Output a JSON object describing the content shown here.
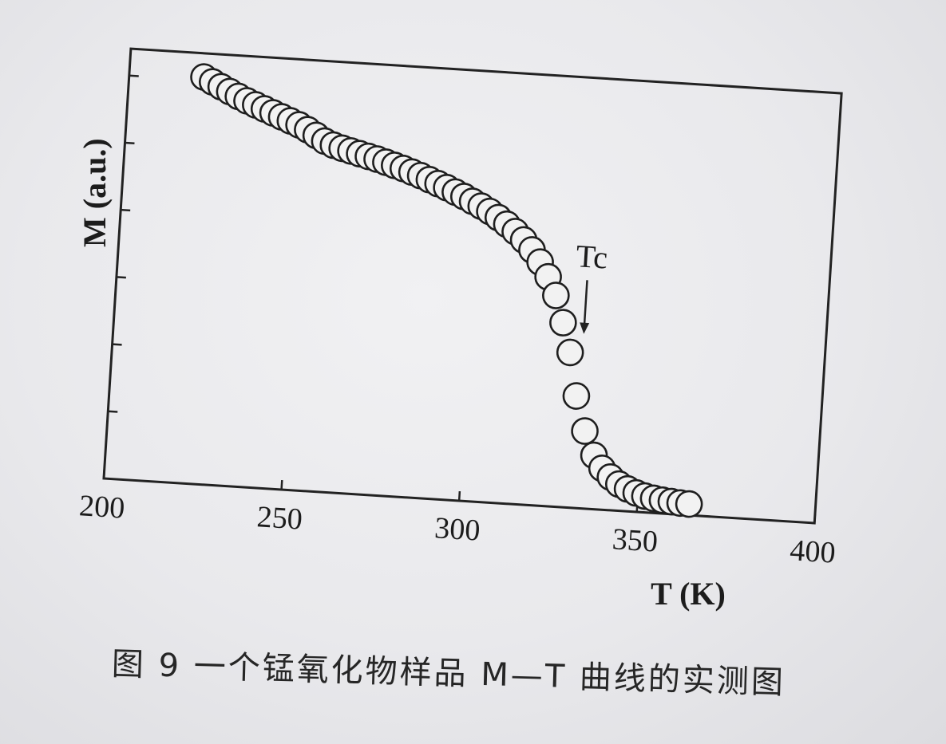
{
  "chart_data": {
    "type": "scatter",
    "xlabel": "T (K)",
    "ylabel": "M (a.u.)",
    "xlim": [
      200,
      400
    ],
    "x_ticks": [
      "200",
      "250",
      "300",
      "350",
      "400"
    ],
    "ylim": [
      0,
      1
    ],
    "y_tick_count": 6,
    "y_tick_labels_shown": false,
    "marker": "open-circle",
    "annotation": {
      "text": "Tc",
      "x": 332,
      "arrow": "down"
    },
    "series": [
      {
        "x": [
          221,
          223.5,
          226,
          228.5,
          231,
          233.5,
          236,
          238.5,
          241,
          243.5,
          246,
          248.5,
          251,
          253.5,
          256,
          258.5,
          261,
          263.5,
          266,
          268.5,
          271,
          273.5,
          276,
          278.5,
          281,
          283.5,
          286,
          288.5,
          291,
          293.5,
          296,
          298.5,
          301,
          303.5,
          306,
          308.5,
          311,
          313.5,
          316,
          318.5,
          321,
          323.5,
          326,
          328.5,
          331,
          334,
          337,
          339.5,
          342,
          344.5,
          347,
          349.5,
          352,
          354.5,
          357,
          359.5,
          362,
          364.5
        ],
        "y": [
          0.945,
          0.935,
          0.925,
          0.915,
          0.905,
          0.896,
          0.888,
          0.88,
          0.872,
          0.864,
          0.856,
          0.848,
          0.838,
          0.826,
          0.814,
          0.806,
          0.8,
          0.795,
          0.79,
          0.785,
          0.78,
          0.774,
          0.768,
          0.762,
          0.755,
          0.748,
          0.74,
          0.732,
          0.724,
          0.715,
          0.706,
          0.696,
          0.686,
          0.675,
          0.662,
          0.648,
          0.632,
          0.614,
          0.592,
          0.565,
          0.532,
          0.49,
          0.428,
          0.36,
          0.26,
          0.18,
          0.125,
          0.096,
          0.077,
          0.062,
          0.052,
          0.044,
          0.038,
          0.034,
          0.031,
          0.029,
          0.027,
          0.026
        ]
      }
    ]
  },
  "caption": "图 9  一个锰氧化物样品 M—T 曲线的实测图"
}
